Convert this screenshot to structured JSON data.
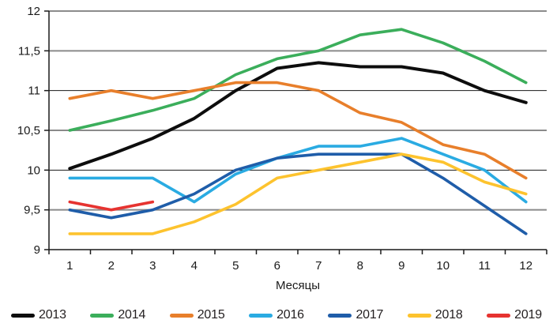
{
  "chart_data": {
    "type": "line",
    "title": "",
    "xlabel": "Месяцы",
    "ylabel": "",
    "x": [
      1,
      2,
      3,
      4,
      5,
      6,
      7,
      8,
      9,
      10,
      11,
      12
    ],
    "x_tick_labels": [
      "1",
      "2",
      "3",
      "4",
      "5",
      "6",
      "7",
      "8",
      "9",
      "10",
      "11",
      "12"
    ],
    "y_axis": {
      "min": 9,
      "max": 12,
      "step": 0.5,
      "tick_labels": [
        "9",
        "9,5",
        "10",
        "10,5",
        "11",
        "11,5",
        "12"
      ]
    },
    "grid": "horizontal",
    "legend_position": "bottom",
    "series": [
      {
        "name": "2013",
        "color": "#0d0d0d",
        "values": [
          10.02,
          10.2,
          10.4,
          10.65,
          11.0,
          11.28,
          11.35,
          11.3,
          11.3,
          11.22,
          11.0,
          10.85
        ]
      },
      {
        "name": "2014",
        "color": "#3bae5b",
        "values": [
          10.5,
          10.62,
          10.75,
          10.9,
          11.2,
          11.4,
          11.5,
          11.7,
          11.77,
          11.6,
          11.37,
          11.1
        ]
      },
      {
        "name": "2015",
        "color": "#e87f2b",
        "values": [
          10.9,
          11.0,
          10.9,
          11.0,
          11.1,
          11.1,
          11.0,
          10.72,
          10.6,
          10.32,
          10.2,
          9.9
        ]
      },
      {
        "name": "2016",
        "color": "#2aabe2",
        "values": [
          9.9,
          9.9,
          9.9,
          9.6,
          9.95,
          10.15,
          10.3,
          10.3,
          10.4,
          10.2,
          10.0,
          9.6
        ]
      },
      {
        "name": "2017",
        "color": "#1f5da9",
        "values": [
          9.5,
          9.4,
          9.5,
          9.7,
          10.0,
          10.15,
          10.2,
          10.2,
          10.2,
          9.9,
          9.55,
          9.2
        ]
      },
      {
        "name": "2018",
        "color": "#fdc32e",
        "values": [
          9.2,
          9.2,
          9.2,
          9.35,
          9.57,
          9.9,
          10.0,
          10.1,
          10.2,
          10.1,
          9.85,
          9.7
        ]
      },
      {
        "name": "2019",
        "color": "#e63330",
        "values": [
          9.6,
          9.5,
          9.6
        ]
      }
    ],
    "axis_color": "#1a1a1a",
    "minor_grid_color": "#8a8a8a"
  }
}
